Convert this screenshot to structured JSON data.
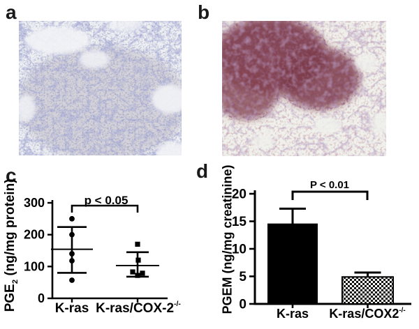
{
  "figure": {
    "panels": {
      "a": {
        "label": "a"
      },
      "b": {
        "label": "b"
      },
      "c": {
        "label": "c",
        "y_axis": {
          "prefix": "PGE",
          "sub": "2",
          "rest": " (ng/mg protein)"
        },
        "groups": [
          {
            "base": "K-ras"
          },
          {
            "base": "K-ras/COX-2",
            "sup": "-/-"
          }
        ]
      },
      "d": {
        "label": "d",
        "y_axis_label": "PGEM (ng/mg creatinine)",
        "groups": [
          {
            "base": "K-ras"
          },
          {
            "base": "K-ras/COX2",
            "sup": "-/-"
          }
        ]
      }
    }
  },
  "chart_data": [
    {
      "id": "c",
      "type": "scatter",
      "title": "",
      "ylabel": "PGE2 (ng/mg protein)",
      "categories": [
        "K-ras",
        "K-ras/COX-2-/-"
      ],
      "ylim": [
        0,
        300
      ],
      "yticks": [
        0,
        100,
        200,
        300
      ],
      "grid": false,
      "series": [
        {
          "name": "K-ras",
          "marker": "circle",
          "points": [
            250,
            200,
            140,
            118,
            57
          ],
          "jitter": [
            0,
            0,
            0,
            0,
            0
          ],
          "mean": 154,
          "sd_low": 80,
          "sd_high": 224
        },
        {
          "name": "K-ras/COX-2-/-",
          "marker": "square",
          "points": [
            170,
            120,
            83,
            79,
            72
          ],
          "jitter": [
            0,
            1,
            -7,
            7,
            0
          ],
          "mean": 103,
          "sd_low": 68,
          "sd_high": 145
        }
      ],
      "significance": {
        "text": "p < 0.05",
        "between": [
          0,
          1
        ]
      }
    },
    {
      "id": "d",
      "type": "bar",
      "title": "",
      "ylabel": "PGEM (ng/mg creatinine)",
      "categories": [
        "K-ras",
        "K-ras/COX2-/-"
      ],
      "ylim": [
        0,
        20
      ],
      "yticks": [
        0,
        5,
        10,
        15,
        20
      ],
      "grid": false,
      "values": [
        14.6,
        4.9
      ],
      "errors_up": [
        2.7,
        0.8
      ],
      "bar_styles": [
        "solid-black",
        "checkerboard"
      ],
      "significance": {
        "text": "P < 0.01",
        "between": [
          0,
          1
        ]
      }
    }
  ]
}
